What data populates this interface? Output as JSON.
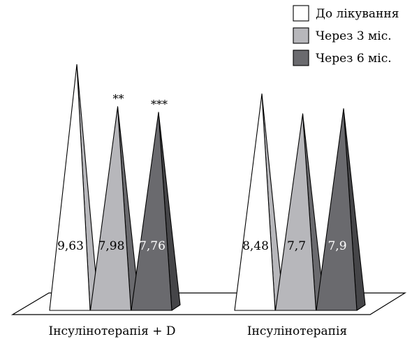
{
  "chart_data": {
    "type": "bar",
    "style": "3d-pyramid",
    "categories": [
      "Інсулінотерапія + D",
      "Інсулінотерапія"
    ],
    "series": [
      {
        "name": "До лікування",
        "values": [
          9.63,
          8.48
        ],
        "value_labels": [
          "9,63",
          "8,48"
        ],
        "color": "#ffffff",
        "side_color": "#b7b7bb"
      },
      {
        "name": "Через 3 міс.",
        "values": [
          7.98,
          7.7
        ],
        "value_labels": [
          "7,98",
          "7,7"
        ],
        "color": "#b7b7bb",
        "side_color": "#6a6a6e"
      },
      {
        "name": "Через 6 міс.",
        "values": [
          7.76,
          7.9
        ],
        "value_labels": [
          "7,76",
          "7,9"
        ],
        "color": "#6a6a6e",
        "side_color": "#454548"
      }
    ],
    "annotations": [
      {
        "category": 0,
        "series": 1,
        "text": "**"
      },
      {
        "category": 0,
        "series": 2,
        "text": "***"
      }
    ],
    "title": "",
    "xlabel": "",
    "ylabel": "",
    "ylim": [
      0,
      10
    ],
    "legend_position": "top-right",
    "grid": false
  }
}
